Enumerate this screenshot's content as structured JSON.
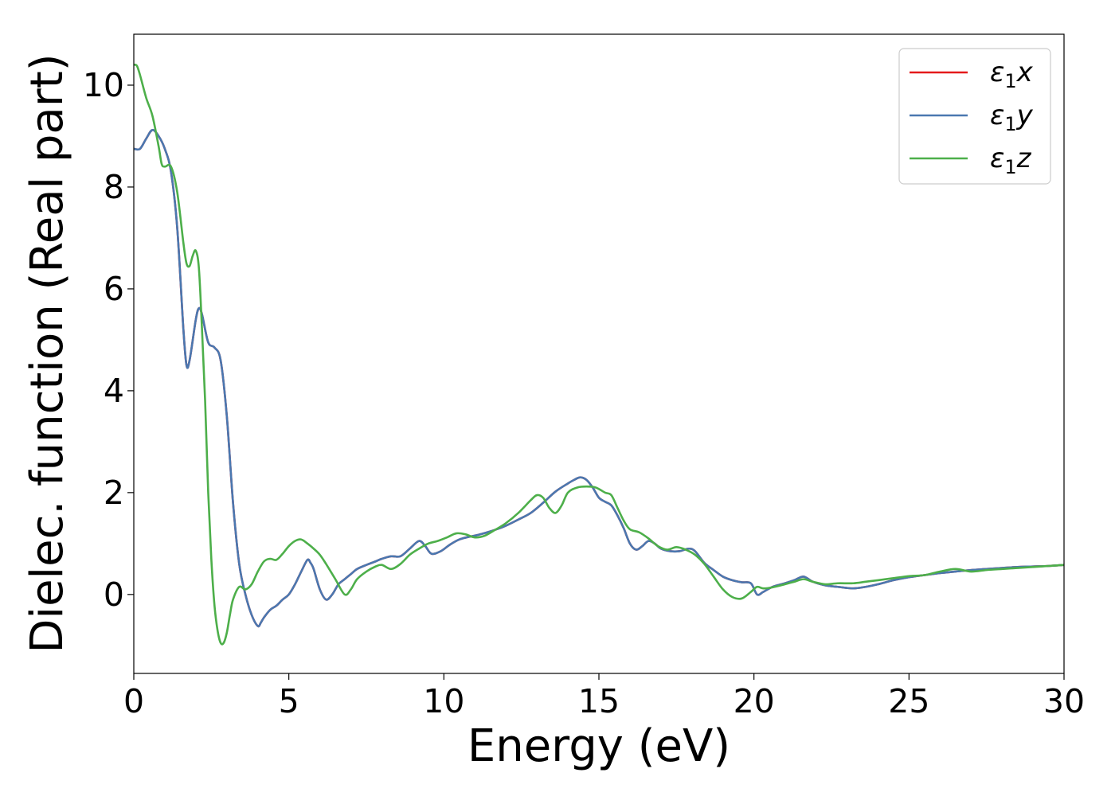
{
  "chart_data": {
    "type": "line",
    "title": "",
    "xlabel": "Energy (eV)",
    "ylabel": "Dielec. function (Real part)",
    "xlim": [
      0,
      30
    ],
    "ylim": [
      -1.55,
      11.0
    ],
    "xticks": [
      "0",
      "5",
      "10",
      "15",
      "20",
      "25",
      "30"
    ],
    "yticks": [
      "0",
      "2",
      "4",
      "6",
      "8",
      "10"
    ],
    "grid": false,
    "legend_position": "top-right",
    "series": [
      {
        "name": "ε1x",
        "legend": {
          "base": "ε",
          "sub": "1",
          "suffix": "x"
        },
        "color": "#e41a1c",
        "x": [
          0,
          0.2,
          0.4,
          0.6,
          0.8,
          1.0,
          1.2,
          1.4,
          1.6,
          1.7,
          1.8,
          2.0,
          2.1,
          2.2,
          2.4,
          2.6,
          2.8,
          3.0,
          3.2,
          3.4,
          3.6,
          3.8,
          4.0,
          4.1,
          4.2,
          4.4,
          4.6,
          4.8,
          5.0,
          5.2,
          5.4,
          5.6,
          5.7,
          5.8,
          6.0,
          6.2,
          6.4,
          6.6,
          6.8,
          7.0,
          7.2,
          7.5,
          7.8,
          8.0,
          8.3,
          8.6,
          8.9,
          9.2,
          9.4,
          9.6,
          9.9,
          10.2,
          10.5,
          10.8,
          11.1,
          11.4,
          11.7,
          12.0,
          12.4,
          12.8,
          13.2,
          13.6,
          14.0,
          14.2,
          14.4,
          14.6,
          14.8,
          15.0,
          15.2,
          15.4,
          15.6,
          15.8,
          16.0,
          16.2,
          16.4,
          16.6,
          16.8,
          17.0,
          17.3,
          17.6,
          17.9,
          18.1,
          18.4,
          18.7,
          19.0,
          19.3,
          19.6,
          19.9,
          20.1,
          20.3,
          20.6,
          21.0,
          21.3,
          21.6,
          21.9,
          22.3,
          22.7,
          23.2,
          23.6,
          24.0,
          24.5,
          25.0,
          25.5,
          26.0,
          26.5,
          27.0,
          27.5,
          28.0,
          28.5,
          29.0,
          29.5,
          30.0
        ],
        "y": [
          8.75,
          8.75,
          8.95,
          9.12,
          9.0,
          8.75,
          8.3,
          7.2,
          5.2,
          4.5,
          4.6,
          5.4,
          5.62,
          5.5,
          4.95,
          4.85,
          4.6,
          3.5,
          1.8,
          0.6,
          0.0,
          -0.4,
          -0.62,
          -0.55,
          -0.45,
          -0.3,
          -0.22,
          -0.1,
          0.0,
          0.2,
          0.45,
          0.68,
          0.62,
          0.5,
          0.1,
          -0.1,
          0.0,
          0.2,
          0.3,
          0.4,
          0.5,
          0.58,
          0.65,
          0.7,
          0.75,
          0.75,
          0.9,
          1.05,
          0.95,
          0.8,
          0.85,
          0.98,
          1.08,
          1.13,
          1.17,
          1.22,
          1.28,
          1.35,
          1.47,
          1.6,
          1.8,
          2.02,
          2.18,
          2.25,
          2.3,
          2.25,
          2.1,
          1.9,
          1.82,
          1.75,
          1.55,
          1.3,
          1.0,
          0.88,
          0.95,
          1.05,
          1.0,
          0.9,
          0.85,
          0.85,
          0.9,
          0.85,
          0.62,
          0.48,
          0.35,
          0.28,
          0.24,
          0.22,
          0.0,
          0.05,
          0.15,
          0.22,
          0.28,
          0.35,
          0.25,
          0.18,
          0.15,
          0.12,
          0.15,
          0.2,
          0.28,
          0.34,
          0.38,
          0.42,
          0.45,
          0.48,
          0.5,
          0.52,
          0.54,
          0.55,
          0.56,
          0.58
        ]
      },
      {
        "name": "ε1y",
        "legend": {
          "base": "ε",
          "sub": "1",
          "suffix": "y"
        },
        "color": "#4a78b0",
        "x": [
          0,
          0.2,
          0.4,
          0.6,
          0.8,
          1.0,
          1.2,
          1.4,
          1.6,
          1.7,
          1.8,
          2.0,
          2.1,
          2.2,
          2.4,
          2.6,
          2.8,
          3.0,
          3.2,
          3.4,
          3.6,
          3.8,
          4.0,
          4.1,
          4.2,
          4.4,
          4.6,
          4.8,
          5.0,
          5.2,
          5.4,
          5.6,
          5.7,
          5.8,
          6.0,
          6.2,
          6.4,
          6.6,
          6.8,
          7.0,
          7.2,
          7.5,
          7.8,
          8.0,
          8.3,
          8.6,
          8.9,
          9.2,
          9.4,
          9.6,
          9.9,
          10.2,
          10.5,
          10.8,
          11.1,
          11.4,
          11.7,
          12.0,
          12.4,
          12.8,
          13.2,
          13.6,
          14.0,
          14.2,
          14.4,
          14.6,
          14.8,
          15.0,
          15.2,
          15.4,
          15.6,
          15.8,
          16.0,
          16.2,
          16.4,
          16.6,
          16.8,
          17.0,
          17.3,
          17.6,
          17.9,
          18.1,
          18.4,
          18.7,
          19.0,
          19.3,
          19.6,
          19.9,
          20.1,
          20.3,
          20.6,
          21.0,
          21.3,
          21.6,
          21.9,
          22.3,
          22.7,
          23.2,
          23.6,
          24.0,
          24.5,
          25.0,
          25.5,
          26.0,
          26.5,
          27.0,
          27.5,
          28.0,
          28.5,
          29.0,
          29.5,
          30.0
        ],
        "y": [
          8.75,
          8.75,
          8.95,
          9.12,
          9.0,
          8.75,
          8.3,
          7.2,
          5.2,
          4.5,
          4.6,
          5.4,
          5.62,
          5.5,
          4.95,
          4.85,
          4.6,
          3.5,
          1.8,
          0.6,
          0.0,
          -0.4,
          -0.62,
          -0.55,
          -0.45,
          -0.3,
          -0.22,
          -0.1,
          0.0,
          0.2,
          0.45,
          0.68,
          0.62,
          0.5,
          0.1,
          -0.1,
          0.0,
          0.2,
          0.3,
          0.4,
          0.5,
          0.58,
          0.65,
          0.7,
          0.75,
          0.75,
          0.9,
          1.05,
          0.95,
          0.8,
          0.85,
          0.98,
          1.08,
          1.13,
          1.17,
          1.22,
          1.28,
          1.35,
          1.47,
          1.6,
          1.8,
          2.02,
          2.18,
          2.25,
          2.3,
          2.25,
          2.1,
          1.9,
          1.82,
          1.75,
          1.55,
          1.3,
          1.0,
          0.88,
          0.95,
          1.05,
          1.0,
          0.9,
          0.85,
          0.85,
          0.9,
          0.85,
          0.62,
          0.48,
          0.35,
          0.28,
          0.24,
          0.22,
          0.0,
          0.05,
          0.15,
          0.22,
          0.28,
          0.35,
          0.25,
          0.18,
          0.15,
          0.12,
          0.15,
          0.2,
          0.28,
          0.34,
          0.38,
          0.42,
          0.45,
          0.48,
          0.5,
          0.52,
          0.54,
          0.55,
          0.56,
          0.58
        ]
      },
      {
        "name": "ε1z",
        "legend": {
          "base": "ε",
          "sub": "1",
          "suffix": "z"
        },
        "color": "#4daf4a",
        "x": [
          0,
          0.1,
          0.2,
          0.4,
          0.6,
          0.8,
          0.9,
          1.0,
          1.2,
          1.4,
          1.6,
          1.7,
          1.8,
          1.9,
          2.0,
          2.1,
          2.2,
          2.3,
          2.4,
          2.5,
          2.6,
          2.7,
          2.8,
          2.9,
          3.0,
          3.1,
          3.2,
          3.4,
          3.6,
          3.8,
          4.0,
          4.2,
          4.4,
          4.6,
          4.8,
          5.0,
          5.2,
          5.4,
          5.6,
          5.8,
          6.0,
          6.2,
          6.5,
          6.8,
          7.0,
          7.2,
          7.5,
          7.8,
          8.0,
          8.3,
          8.6,
          8.9,
          9.2,
          9.5,
          9.8,
          10.1,
          10.4,
          10.7,
          11.0,
          11.3,
          11.6,
          12.0,
          12.4,
          12.8,
          13.0,
          13.2,
          13.4,
          13.6,
          13.8,
          14.0,
          14.3,
          14.6,
          14.9,
          15.2,
          15.4,
          15.6,
          15.8,
          16.0,
          16.3,
          16.6,
          16.9,
          17.2,
          17.5,
          17.8,
          18.1,
          18.4,
          18.7,
          19.0,
          19.3,
          19.6,
          19.9,
          20.1,
          20.3,
          20.6,
          21.0,
          21.3,
          21.6,
          21.9,
          22.3,
          22.7,
          23.2,
          23.6,
          24.0,
          24.5,
          25.0,
          25.5,
          26.0,
          26.5,
          27.0,
          27.5,
          28.0,
          28.5,
          29.0,
          29.5,
          30.0
        ],
        "y": [
          10.4,
          10.38,
          10.2,
          9.75,
          9.4,
          8.8,
          8.45,
          8.4,
          8.4,
          7.9,
          6.9,
          6.5,
          6.45,
          6.65,
          6.75,
          6.4,
          5.2,
          3.8,
          2.0,
          0.7,
          -0.2,
          -0.7,
          -0.95,
          -0.95,
          -0.75,
          -0.4,
          -0.1,
          0.15,
          0.1,
          0.2,
          0.45,
          0.65,
          0.7,
          0.68,
          0.8,
          0.95,
          1.05,
          1.08,
          1.0,
          0.9,
          0.78,
          0.6,
          0.3,
          0.0,
          0.1,
          0.3,
          0.45,
          0.55,
          0.58,
          0.5,
          0.6,
          0.78,
          0.9,
          1.0,
          1.05,
          1.12,
          1.2,
          1.18,
          1.12,
          1.15,
          1.25,
          1.4,
          1.6,
          1.85,
          1.95,
          1.9,
          1.7,
          1.6,
          1.75,
          2.0,
          2.1,
          2.12,
          2.1,
          2.0,
          1.95,
          1.7,
          1.45,
          1.28,
          1.22,
          1.1,
          0.95,
          0.88,
          0.93,
          0.88,
          0.78,
          0.6,
          0.35,
          0.1,
          -0.05,
          -0.08,
          0.05,
          0.15,
          0.12,
          0.14,
          0.2,
          0.25,
          0.3,
          0.25,
          0.2,
          0.22,
          0.22,
          0.25,
          0.28,
          0.32,
          0.36,
          0.38,
          0.45,
          0.5,
          0.45,
          0.48,
          0.5,
          0.52,
          0.54,
          0.56,
          0.58
        ]
      }
    ]
  }
}
